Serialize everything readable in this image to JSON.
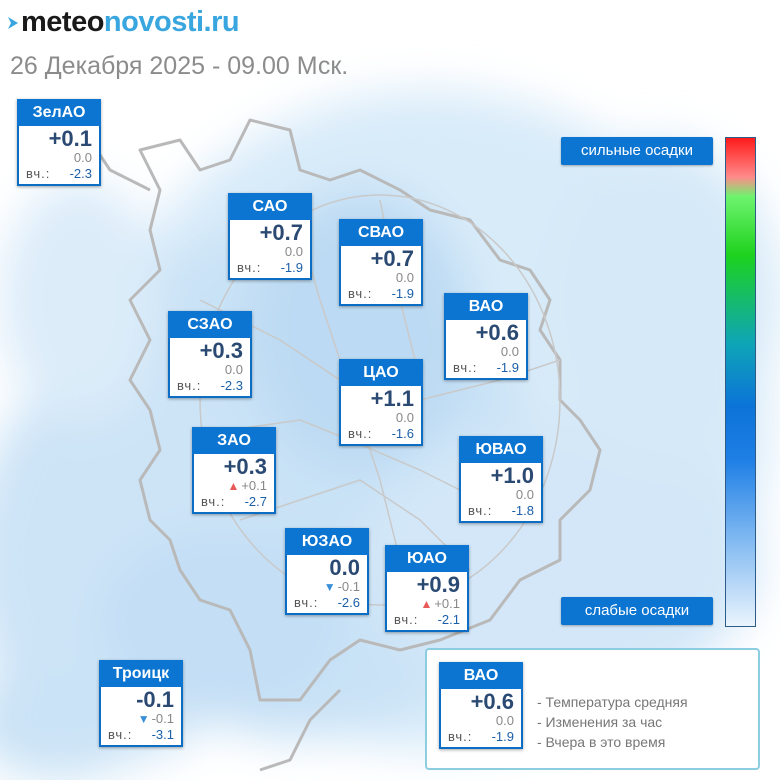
{
  "brand": {
    "part1": "meteo",
    "part2": "novosti",
    "part3": ".ru"
  },
  "date_line": "26 Декабря 2025 - 09.00 Мск.",
  "yesterday_label": "вч.:",
  "districts": [
    {
      "name": "ЗелАО",
      "temp": "+0.1",
      "change": "0.0",
      "trend": "",
      "yesterday": "-2.3"
    },
    {
      "name": "САО",
      "temp": "+0.7",
      "change": "0.0",
      "trend": "",
      "yesterday": "-1.9"
    },
    {
      "name": "СВАО",
      "temp": "+0.7",
      "change": "0.0",
      "trend": "",
      "yesterday": "-1.9"
    },
    {
      "name": "ВАО",
      "temp": "+0.6",
      "change": "0.0",
      "trend": "",
      "yesterday": "-1.9"
    },
    {
      "name": "СЗАО",
      "temp": "+0.3",
      "change": "0.0",
      "trend": "",
      "yesterday": "-2.3"
    },
    {
      "name": "ЦАО",
      "temp": "+1.1",
      "change": "0.0",
      "trend": "",
      "yesterday": "-1.6"
    },
    {
      "name": "ЗАО",
      "temp": "+0.3",
      "change": "+0.1",
      "trend": "up",
      "yesterday": "-2.7"
    },
    {
      "name": "ЮВАО",
      "temp": "+1.0",
      "change": "0.0",
      "trend": "",
      "yesterday": "-1.8"
    },
    {
      "name": "ЮЗАО",
      "temp": "0.0",
      "change": "-0.1",
      "trend": "down",
      "yesterday": "-2.6"
    },
    {
      "name": "ЮАО",
      "temp": "+0.9",
      "change": "+0.1",
      "trend": "up",
      "yesterday": "-2.1"
    },
    {
      "name": "Троицк",
      "temp": "-0.1",
      "change": "-0.1",
      "trend": "down",
      "yesterday": "-3.1"
    }
  ],
  "legend": {
    "strong_label": "сильные осадки",
    "weak_label": "слабые осадки",
    "colors": {
      "strong": "#ff1b1b",
      "mid": "#1ed21e",
      "weak": "#eaf4fd",
      "card_header": "#0b75d1"
    }
  },
  "info": {
    "sample": {
      "name": "ВАО",
      "temp": "+0.6",
      "change": "0.0",
      "yesterday": "-1.9"
    },
    "lines": [
      "- Температура средняя",
      "- Изменения за час",
      "- Вчера в это время"
    ]
  }
}
